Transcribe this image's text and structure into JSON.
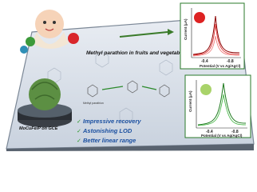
{
  "header": {
    "label": "Methyl parathion in fruits and vegetables"
  },
  "electrode": {
    "label": "MoCuFe/P on GCE"
  },
  "scheme": {
    "label": "Methyl parathion"
  },
  "plots": [
    {
      "y_label": "Current (μA)",
      "x_label": "Potential (V vs Ag/AgCl)",
      "ticks": [
        "-0.4",
        "-0.8"
      ]
    },
    {
      "y_label": "Current (μA)",
      "x_label": "Potential (V vs Ag/AgCl)",
      "ticks": [
        "-0.4",
        "-0.8"
      ]
    }
  ],
  "features": [
    "Impressive recovery",
    "Astonishing LOD",
    "Better linear range"
  ]
}
